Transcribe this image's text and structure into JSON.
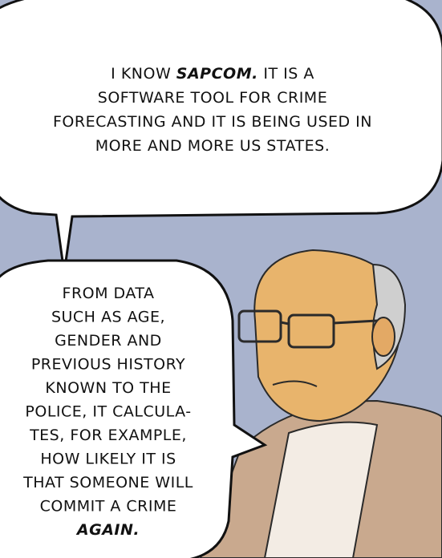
{
  "bubble_1": {
    "lines": [
      [
        "I KNOW ",
        "SAPCOM.",
        " IT IS A"
      ],
      [
        "SOFTWARE TOOL FOR CRIME"
      ],
      [
        "FORECASTING AND IT IS BEING USED IN"
      ],
      [
        "MORE AND MORE US STATES."
      ]
    ]
  },
  "bubble_2": {
    "lines": [
      "FROM DATA",
      "SUCH AS AGE,",
      "GENDER AND",
      "PREVIOUS HISTORY",
      "KNOWN TO THE",
      "POLICE, IT CALCULA-",
      "TES, FOR EXAMPLE,",
      "HOW LIKELY IT IS",
      "THAT SOMEONE WILL",
      "COMMIT A CRIME",
      "AGAIN."
    ]
  }
}
